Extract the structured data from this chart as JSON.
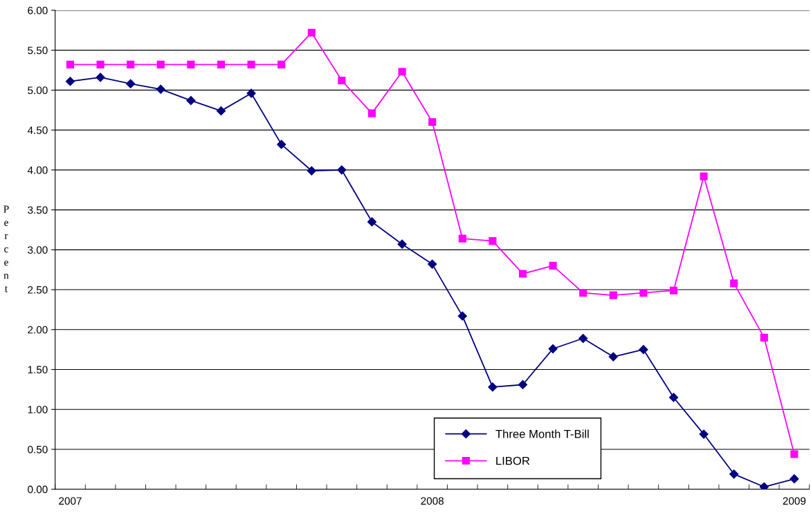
{
  "chart_data": {
    "type": "line",
    "ylabel": "Percent",
    "categories": [
      "2007",
      null,
      null,
      null,
      null,
      null,
      null,
      null,
      null,
      null,
      null,
      null,
      "2008",
      null,
      null,
      null,
      null,
      null,
      null,
      null,
      null,
      null,
      null,
      null,
      "2009"
    ],
    "series": [
      {
        "name": "Three Month T-Bill",
        "color": "#000080",
        "marker": "diamond",
        "values": [
          5.11,
          5.16,
          5.08,
          5.01,
          4.87,
          4.74,
          4.96,
          4.32,
          3.99,
          4.0,
          3.35,
          3.07,
          2.82,
          2.17,
          1.28,
          1.31,
          1.76,
          1.89,
          1.66,
          1.75,
          1.15,
          0.69,
          0.19,
          0.03,
          0.13
        ]
      },
      {
        "name": "LIBOR",
        "color": "#ff00ff",
        "marker": "square",
        "values": [
          5.32,
          5.32,
          5.32,
          5.32,
          5.32,
          5.32,
          5.32,
          5.32,
          5.72,
          5.12,
          4.71,
          5.23,
          4.6,
          3.14,
          3.11,
          2.7,
          2.8,
          2.46,
          2.43,
          2.46,
          2.49,
          3.92,
          2.58,
          1.9,
          0.44
        ]
      }
    ],
    "ylim": [
      0,
      6
    ],
    "yticks": [
      {
        "value": 0,
        "label": "0.00"
      },
      {
        "value": 0.5,
        "label": "0.50"
      },
      {
        "value": 1,
        "label": "1.00"
      },
      {
        "value": 1.5,
        "label": "1.50"
      },
      {
        "value": 2,
        "label": "2.00"
      },
      {
        "value": 2.5,
        "label": "2.50"
      },
      {
        "value": 3,
        "label": "3.00"
      },
      {
        "value": 3.5,
        "label": "3.50"
      },
      {
        "value": 4,
        "label": "4.00"
      },
      {
        "value": 4.5,
        "label": "4.50"
      },
      {
        "value": 5,
        "label": "5.00"
      },
      {
        "value": 5.5,
        "label": "5.50"
      },
      {
        "value": 6,
        "label": "6.00"
      }
    ],
    "grid": "y",
    "legend": "bottom",
    "line_style": "solid"
  }
}
